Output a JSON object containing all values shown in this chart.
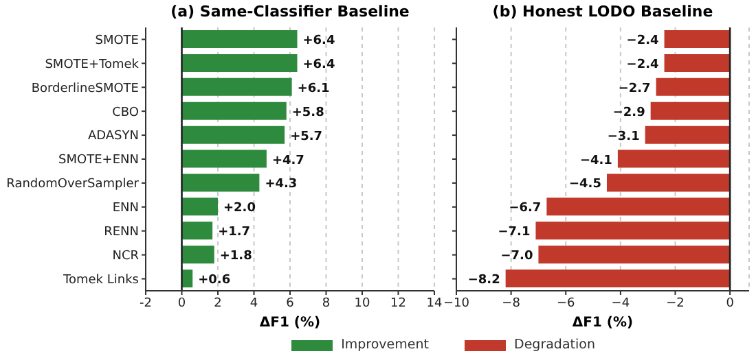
{
  "chart_data": [
    {
      "type": "bar",
      "orientation": "horizontal",
      "title": "(a) Same-Classifier Baseline",
      "xlabel": "ΔF1 (%)",
      "categories": [
        "SMOTE",
        "SMOTE+Tomek",
        "BorderlineSMOTE",
        "CBO",
        "ADASYN",
        "SMOTE+ENN",
        "RandomOverSampler",
        "ENN",
        "RENN",
        "NCR",
        "Tomek Links"
      ],
      "series": [
        {
          "name": "Improvement",
          "color": "#2e8b3e",
          "values": [
            6.4,
            6.4,
            6.1,
            5.8,
            5.7,
            4.7,
            4.3,
            2.0,
            1.7,
            1.8,
            0.6
          ],
          "value_labels": [
            "+6.4",
            "+6.4",
            "+6.1",
            "+5.8",
            "+5.7",
            "+4.7",
            "+4.3",
            "+2.0",
            "+1.7",
            "+1.8",
            "+0.6"
          ]
        }
      ],
      "xlim": [
        -2,
        14
      ],
      "xticks": [
        -2,
        0,
        2,
        4,
        6,
        8,
        10,
        12,
        14
      ],
      "grid": "x",
      "legend": "bottom right",
      "ref_lines": [
        {
          "axis": "x",
          "value": 0,
          "color": "#222222"
        }
      ]
    },
    {
      "type": "bar",
      "orientation": "horizontal",
      "title": "(b) Honest LODO Baseline",
      "xlabel": "ΔF1 (%)",
      "categories": [
        null,
        null,
        null,
        null,
        null,
        null,
        null,
        null,
        null,
        null,
        null
      ],
      "series": [
        {
          "name": "Degradation",
          "color": "#c0392b",
          "values": [
            -2.4,
            -2.4,
            -2.7,
            -2.9,
            -3.1,
            -4.1,
            -4.5,
            -6.7,
            -7.1,
            -7.0,
            -8.2
          ],
          "value_labels": [
            "−2.4",
            "−2.4",
            "−2.7",
            "−2.9",
            "−3.1",
            "−4.1",
            "−4.5",
            "−6.7",
            "−7.1",
            "−7.0",
            "−8.2"
          ]
        }
      ],
      "xlim": [
        -10,
        0.7
      ],
      "xticks": [
        {
          "value": -10,
          "label": "−10"
        },
        {
          "value": -8,
          "label": "−8"
        },
        {
          "value": -6,
          "label": "−6"
        },
        {
          "value": -4,
          "label": "−4"
        },
        {
          "value": -2,
          "label": "−2"
        },
        0
      ],
      "grid": "x",
      "legend": "bottom left",
      "tick_labels": "x",
      "ref_lines": [
        {
          "axis": "x",
          "value": 0,
          "color": "#222222"
        }
      ]
    }
  ]
}
